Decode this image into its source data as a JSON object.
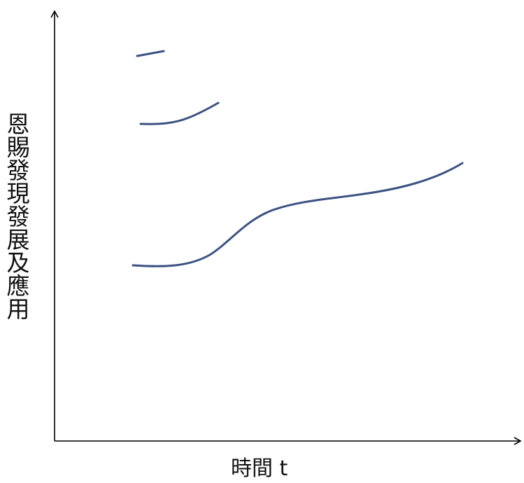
{
  "axes": {
    "y_label": "恩賜發現發展及應用",
    "x_label": "時間 t"
  },
  "colors": {
    "axis": "#000000",
    "curve": "#3b5282"
  },
  "curves": [
    {
      "name": "curve-top"
    },
    {
      "name": "curve-middle"
    },
    {
      "name": "curve-bottom"
    }
  ]
}
